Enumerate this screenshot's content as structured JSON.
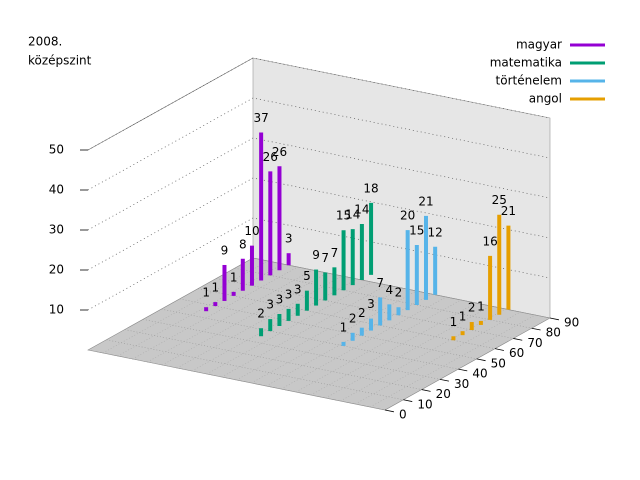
{
  "chart_data": {
    "type": "bar3d",
    "title": "2008.",
    "subtitle": "középszint",
    "series": [
      {
        "name": "magyar",
        "color": "#9400d3",
        "x": [
          45,
          50,
          55,
          60,
          65,
          70,
          75,
          80,
          85,
          90
        ],
        "values": [
          1,
          1,
          9,
          1,
          8,
          10,
          37,
          26,
          26,
          3
        ]
      },
      {
        "name": "matematika",
        "color": "#009e73",
        "x": [
          35,
          40,
          45,
          50,
          55,
          60,
          65,
          70,
          75,
          80,
          85,
          90,
          95
        ],
        "values": [
          2,
          3,
          3,
          3,
          3,
          5,
          9,
          7,
          7,
          15,
          14,
          14,
          18
        ]
      },
      {
        "name": "történelem",
        "color": "#56b4e9",
        "x": [
          40,
          45,
          50,
          55,
          60,
          65,
          70,
          75,
          80,
          85,
          90
        ],
        "values": [
          1,
          2,
          2,
          3,
          7,
          4,
          2,
          20,
          15,
          21,
          12
        ]
      },
      {
        "name": "angol",
        "color": "#e69f00",
        "x": [
          60,
          65,
          70,
          75,
          80,
          85,
          90
        ],
        "values": [
          1,
          1,
          2,
          1,
          16,
          25,
          21
        ]
      }
    ],
    "xlim": [
      0,
      90
    ],
    "xticks": [
      0,
      10,
      20,
      30,
      40,
      50,
      60,
      70,
      80,
      90
    ],
    "ylim": [
      0,
      50
    ],
    "yticks": [
      10,
      20,
      30,
      40,
      50
    ],
    "grid": true,
    "legend": "top-right"
  }
}
